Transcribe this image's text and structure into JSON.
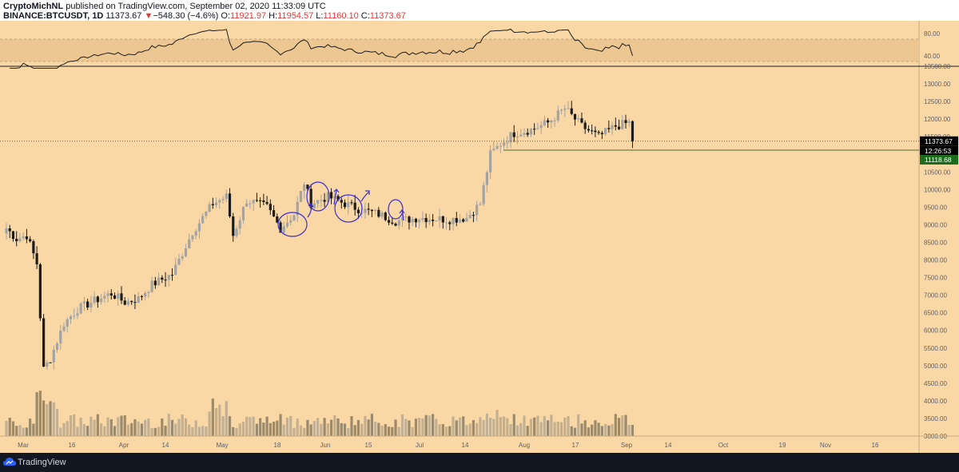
{
  "header": {
    "author": "CryptoMichNL",
    "published": "published on TradingView.com, September 02, 2020 11:33:09 UTC",
    "symbol": "BINANCE:BTCUSDT, 1D",
    "last": "11373.67",
    "change_arrow": "▼",
    "change": "−548.30 (−4.6%)",
    "o_label": "O:",
    "o_value": "11921.97",
    "h_label": "H:",
    "h_value": "11954.57",
    "l_label": "L:",
    "l_value": "11160.10",
    "c_label": "C:",
    "c_value": "11373.67"
  },
  "footer": {
    "brand": "TradingView",
    "logo_icon": "tradingview-cloud-icon"
  },
  "colors": {
    "background": "#fad8a6",
    "bull": "#a3a3a3",
    "bear": "#1c1c1c",
    "rsi_band": "#ecc792",
    "annotation": "#3c2fd0",
    "price_tag": "#000000",
    "support_tag": "#1e6b1e"
  },
  "chart_data": [
    {
      "type": "candlestick",
      "symbol": "BINANCE:BTCUSDT",
      "interval": "1D",
      "x_ticks": [
        "Mar",
        "16",
        "Apr",
        "14",
        "May",
        "18",
        "Jun",
        "15",
        "Jul",
        "14",
        "Aug",
        "17",
        "Sep",
        "14",
        "Oct",
        "19",
        "Nov",
        "16"
      ],
      "y_ticks": [
        "13500.00",
        "13000.00",
        "12500.00",
        "12000.00",
        "11500.00",
        "10500.00",
        "10000.00",
        "9500.00",
        "9000.00",
        "8500.00",
        "8000.00",
        "7500.00",
        "7000.00",
        "6500.00",
        "6000.00",
        "5500.00",
        "5000.00",
        "4500.00",
        "4000.00",
        "3500.00",
        "3000.00"
      ],
      "ylim": [
        3000,
        13500
      ],
      "last_price": "11373.67",
      "countdown": "12:26:53",
      "support_level": "11118.68",
      "horizontal_lines": [
        13500,
        11373.67,
        11118.68
      ],
      "annotations": "hand-drawn circles and arrows around May–June consolidation highs/lows",
      "ohlc_approx": [
        [
          "2020-03-01",
          8520,
          8750,
          8450,
          8600
        ],
        [
          "2020-03-08",
          8600,
          8150,
          7800,
          7950
        ],
        [
          "2020-03-12",
          7900,
          8000,
          4600,
          4850
        ],
        [
          "2020-03-13",
          4850,
          5800,
          3850,
          5150
        ],
        [
          "2020-03-20",
          5200,
          6900,
          5100,
          6200
        ],
        [
          "2020-04-01",
          6400,
          7100,
          6200,
          6700
        ],
        [
          "2020-04-14",
          6800,
          7300,
          6500,
          7100
        ],
        [
          "2020-04-29",
          7800,
          9300,
          7600,
          8800
        ],
        [
          "2020-05-08",
          9200,
          10000,
          8500,
          9800
        ],
        [
          "2020-05-10",
          9400,
          9500,
          8200,
          8700
        ],
        [
          "2020-05-18",
          9300,
          9900,
          9100,
          9700
        ],
        [
          "2020-05-25",
          9200,
          9100,
          8700,
          8800
        ],
        [
          "2020-06-01",
          9400,
          10400,
          9400,
          10200
        ],
        [
          "2020-06-02",
          10200,
          10250,
          9300,
          9500
        ],
        [
          "2020-06-15",
          9400,
          9500,
          8900,
          9450
        ],
        [
          "2020-07-01",
          9200,
          9300,
          8900,
          9100
        ],
        [
          "2020-07-14",
          9250,
          9300,
          9100,
          9250
        ],
        [
          "2020-07-27",
          9800,
          11400,
          9700,
          11000
        ],
        [
          "2020-08-02",
          11800,
          12100,
          10700,
          11100
        ],
        [
          "2020-08-17",
          11900,
          12450,
          11800,
          12300
        ],
        [
          "2020-08-25",
          11700,
          11800,
          11100,
          11400
        ],
        [
          "2020-09-01",
          11650,
          12050,
          11550,
          11900
        ],
        [
          "2020-09-02",
          11921.97,
          11954.57,
          11160.1,
          11373.67
        ]
      ]
    },
    {
      "type": "line",
      "name": "RSI",
      "y_ticks": [
        "80.00",
        "40.00"
      ],
      "band": [
        30,
        70
      ],
      "note": "oscillator pane above main price pane"
    }
  ]
}
